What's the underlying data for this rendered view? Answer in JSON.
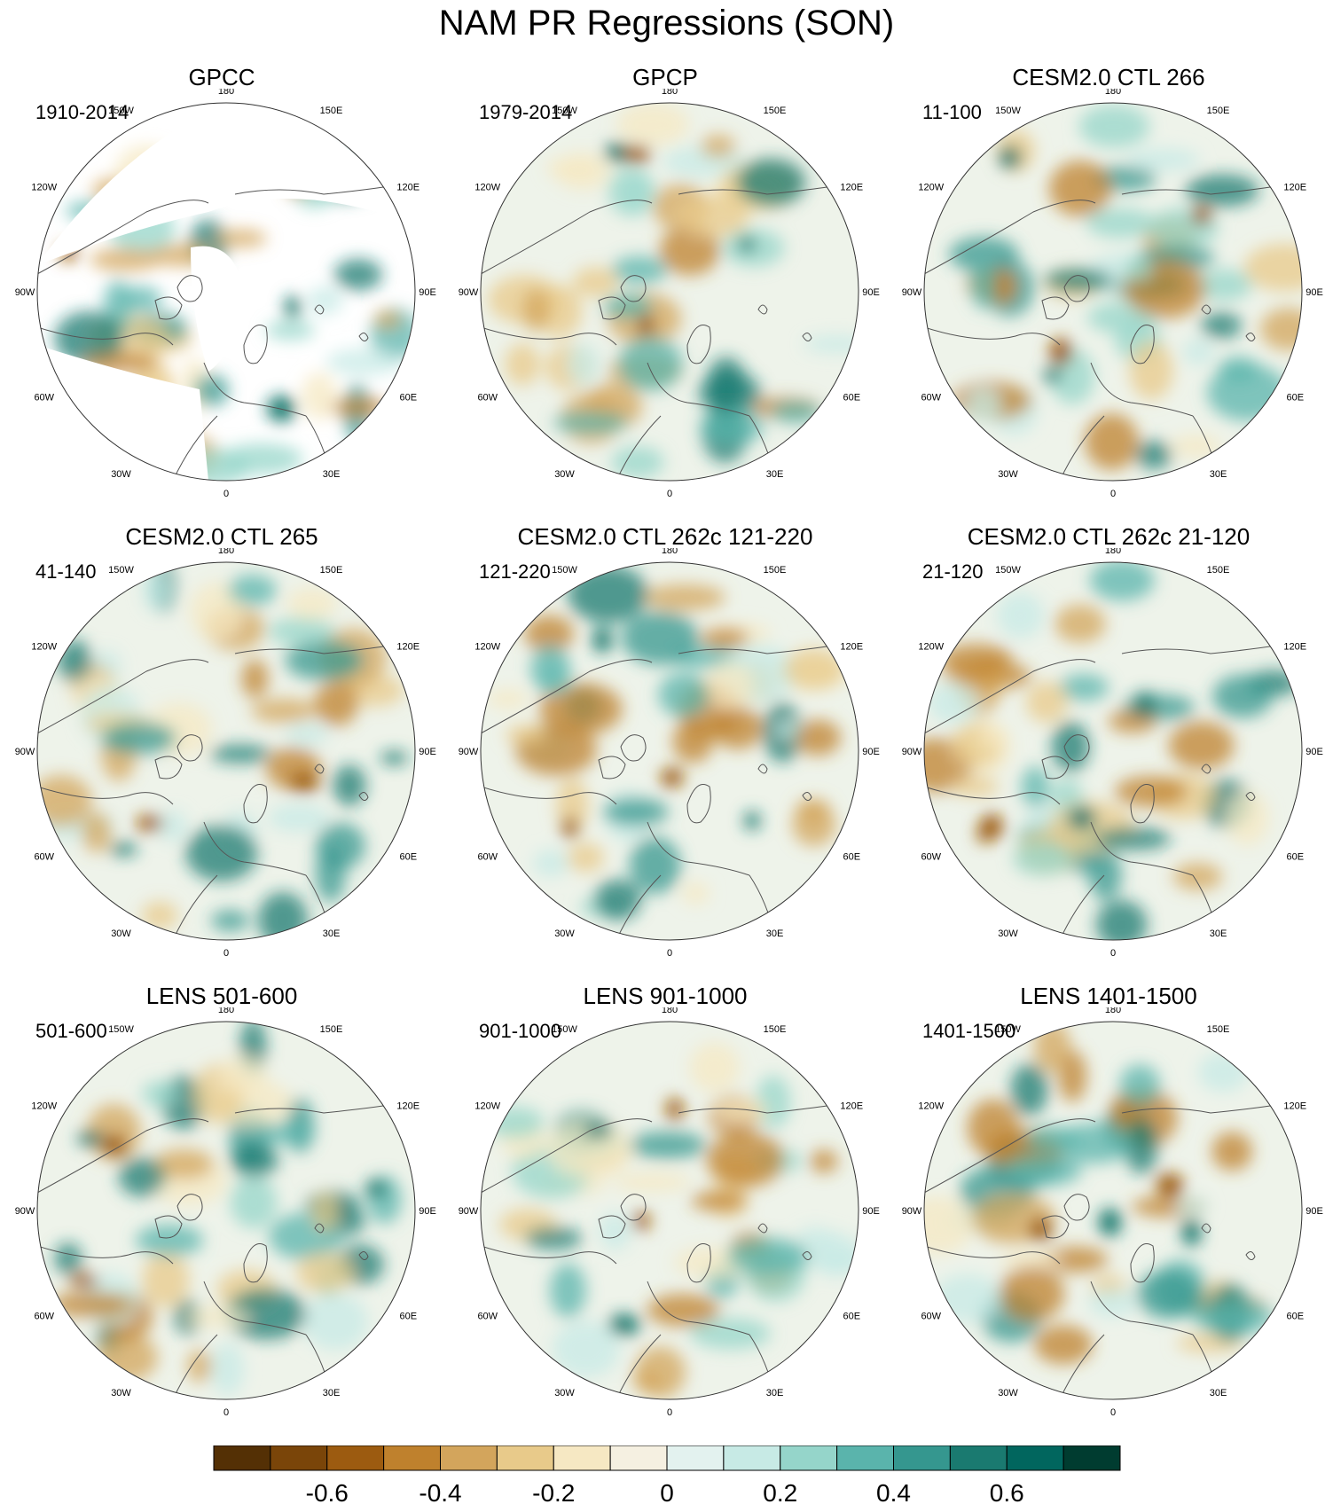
{
  "title": "NAM PR Regressions (SON)",
  "panels": [
    {
      "title": "GPCC",
      "period": "1910-2014"
    },
    {
      "title": "GPCP",
      "period": "1979-2014"
    },
    {
      "title": "CESM2.0 CTL 266",
      "period": "11-100"
    },
    {
      "title": "CESM2.0 CTL 265",
      "period": "41-140"
    },
    {
      "title": "CESM2.0 CTL 262c 121-220",
      "period": "121-220"
    },
    {
      "title": "CESM2.0 CTL 262c 21-120",
      "period": "21-120"
    },
    {
      "title": "LENS 501-600",
      "period": "501-600"
    },
    {
      "title": "LENS 901-1000",
      "period": "901-1000"
    },
    {
      "title": "LENS 1401-1500",
      "period": "1401-1500"
    }
  ],
  "longitude_labels": [
    "180",
    "150E",
    "120E",
    "90E",
    "60E",
    "30E",
    "0",
    "30W",
    "60W",
    "90W",
    "120W",
    "150W"
  ],
  "colorbar": {
    "tick_labels": [
      "-0.6",
      "-0.4",
      "-0.2",
      "0",
      "0.2",
      "0.4",
      "0.6"
    ],
    "colors": [
      "#543005",
      "#7a4509",
      "#9c5b10",
      "#bf812d",
      "#d3a55c",
      "#e8ca8a",
      "#f6e8c3",
      "#f5f0e1",
      "#e3f2ef",
      "#c7eae5",
      "#95d5ca",
      "#5ab4ac",
      "#35978f",
      "#1a7a70",
      "#01665e",
      "#003c30"
    ]
  }
}
